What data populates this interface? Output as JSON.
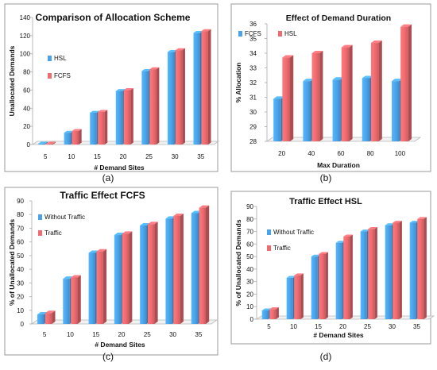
{
  "colors": {
    "blue": "#4aa3ea",
    "red": "#f06b70",
    "frame": "#9a9a9a",
    "axis": "#b8b8b8"
  },
  "chart_data": [
    {
      "type": "bar",
      "title": "Comparison of Allocation Scheme",
      "xlabel": "# Demand Sites",
      "ylabel": "Unallocated Demands",
      "caption": "(a)",
      "categories": [
        "5",
        "10",
        "15",
        "20",
        "25",
        "30",
        "35"
      ],
      "series": [
        {
          "name": "HSL",
          "values": [
            1,
            13,
            35,
            59,
            81,
            102,
            123
          ]
        },
        {
          "name": "FCFS",
          "values": [
            1,
            15,
            36,
            60,
            83,
            104,
            125
          ]
        }
      ],
      "ylim": [
        0,
        140
      ],
      "yticks": [
        "0",
        "20",
        "40",
        "60",
        "80",
        "100",
        "120",
        "140"
      ],
      "grid": false,
      "legend": "left"
    },
    {
      "type": "bar",
      "title": "Effect of Demand Duration",
      "xlabel": "Max Duration",
      "ylabel": "% Allocation",
      "caption": "(b)",
      "categories": [
        "20",
        "40",
        "60",
        "80",
        "100"
      ],
      "series": [
        {
          "name": "FCFS",
          "values": [
            30.9,
            32.1,
            32.2,
            32.3,
            32.1
          ]
        },
        {
          "name": "HSL",
          "values": [
            33.7,
            34.0,
            34.4,
            34.7,
            35.8
          ]
        }
      ],
      "ylim": [
        28,
        36
      ],
      "yticks": [
        "28",
        "29",
        "30",
        "31",
        "32",
        "33",
        "34",
        "35",
        "36"
      ],
      "grid": false,
      "legend": "top-left"
    },
    {
      "type": "bar",
      "title": "Traffic Effect FCFS",
      "xlabel": "# Demand Sites",
      "ylabel": "% of Unallocated Demands",
      "caption": "(c)",
      "categories": [
        "5",
        "10",
        "15",
        "20",
        "25",
        "30",
        "35"
      ],
      "series": [
        {
          "name": "Without Traffic",
          "values": [
            7,
            33,
            52,
            65,
            72,
            77,
            81
          ]
        },
        {
          "name": "Traffic",
          "values": [
            8,
            34,
            53,
            66,
            73,
            79,
            85
          ]
        }
      ],
      "ylim": [
        0,
        90
      ],
      "yticks": [
        "0",
        "10",
        "20",
        "30",
        "40",
        "50",
        "60",
        "70",
        "80",
        "90"
      ],
      "grid": false,
      "legend": "left"
    },
    {
      "type": "bar",
      "title": "Traffic Effect HSL",
      "xlabel": "# Demand Sites",
      "ylabel": "% of Unallocated Demands",
      "caption": "(d)",
      "categories": [
        "5",
        "10",
        "15",
        "20",
        "25",
        "30",
        "35"
      ],
      "series": [
        {
          "name": "Without Traffic",
          "values": [
            7,
            33,
            50,
            61,
            70,
            75,
            77
          ]
        },
        {
          "name": "Traffic",
          "values": [
            8,
            35,
            52,
            66,
            72,
            77,
            80
          ]
        }
      ],
      "ylim": [
        0,
        90
      ],
      "yticks": [
        "0",
        "10",
        "20",
        "30",
        "40",
        "50",
        "60",
        "70",
        "80",
        "90"
      ],
      "grid": false,
      "legend": "left"
    }
  ]
}
